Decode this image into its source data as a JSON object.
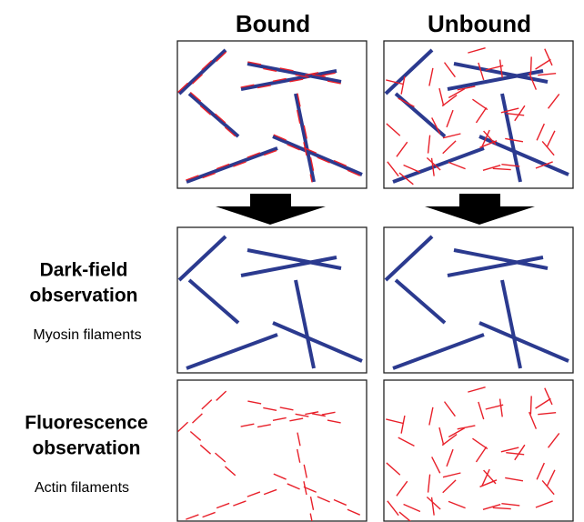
{
  "headers": {
    "bound": "Bound",
    "unbound": "Unbound"
  },
  "rows": {
    "dark_field": {
      "title": [
        "Dark-field",
        "observation"
      ],
      "subtitle": "Myosin filaments"
    },
    "fluorescence": {
      "title": [
        "Fluorescence",
        "observation"
      ],
      "subtitle": "Actin filaments"
    }
  }
}
